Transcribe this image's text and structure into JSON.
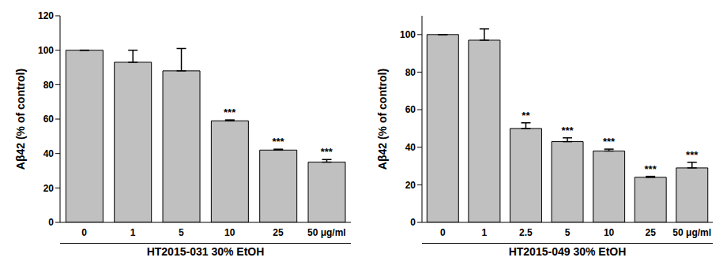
{
  "chart_data": [
    {
      "type": "bar",
      "categories": [
        "0",
        "1",
        "5",
        "10",
        "25",
        "50 μg/ml"
      ],
      "values": [
        100,
        93,
        88,
        59,
        42,
        35
      ],
      "errors": [
        0,
        7,
        13,
        0.5,
        0.5,
        1.5
      ],
      "significance": [
        null,
        null,
        null,
        "***",
        "***",
        "***"
      ],
      "color": "#c0c0c0",
      "ylabel": "Aβ42 (% of control)",
      "xlabel": "HT2015-031 30% EtOH",
      "ylim": [
        0,
        120
      ],
      "yticks": [
        0,
        20,
        40,
        60,
        80,
        100,
        120
      ],
      "grid": false
    },
    {
      "type": "bar",
      "categories": [
        "0",
        "1",
        "2.5",
        "5",
        "10",
        "25",
        "50 μg/ml"
      ],
      "values": [
        100,
        97,
        50,
        43,
        38,
        24,
        29
      ],
      "errors": [
        0,
        6,
        3,
        2,
        1,
        0.5,
        3
      ],
      "significance": [
        null,
        null,
        "**",
        "***",
        "***",
        "***",
        "***"
      ],
      "color": "#c0c0c0",
      "ylabel": "Aβ42 (% of control)",
      "xlabel": "HT2015-049 30% EtOH",
      "ylim": [
        0,
        110
      ],
      "yticks": [
        0,
        20,
        40,
        60,
        80,
        100
      ],
      "grid": false
    }
  ]
}
